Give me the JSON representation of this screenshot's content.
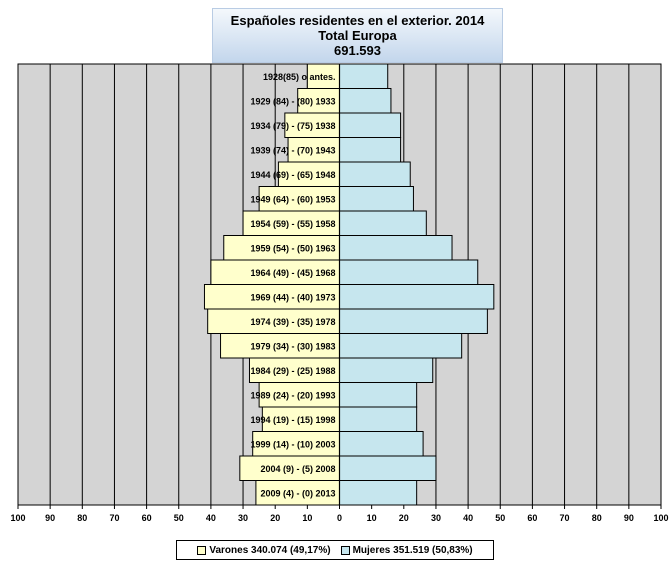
{
  "title": {
    "line1": "Españoles residentes en el exterior.  2014",
    "line2": "Total Europa",
    "line3": "691.593"
  },
  "legend": {
    "varones": "Varones 340.074 (49,17%)",
    "mujeres": "Mujeres 351.519 (50,83%)"
  },
  "colors": {
    "plot_background": "#d4d4d4",
    "varones": "#ffffcc",
    "mujeres": "#c6e6ee",
    "title_gradient_top": "#f4f8fc",
    "title_gradient_bottom": "#c3d6ec"
  },
  "chart_data": {
    "type": "bar",
    "orientation": "horizontal",
    "subtype": "population-pyramid",
    "categories": [
      "1928(85) o antes.",
      "1929 (84) - (80) 1933",
      "1934 (79) - (75) 1938",
      "1939 (74) - (70) 1943",
      "1944 (69) - (65) 1948",
      "1949 (64) - (60) 1953",
      "1954 (59) - (55) 1958",
      "1959 (54) - (50) 1963",
      "1964 (49) - (45) 1968",
      "1969 (44) - (40) 1973",
      "1974 (39) - (35) 1978",
      "1979 (34) - (30) 1983",
      "1984 (29) - (25) 1988",
      "1989 (24) - (20) 1993",
      "1994 (19) - (15) 1998",
      "1999 (14) - (10) 2003",
      "2004 (9) - (5) 2008",
      "2009 (4) - (0) 2013"
    ],
    "series": [
      {
        "name": "Varones 340.074 (49,17%)",
        "values": [
          10,
          13,
          17,
          16,
          19,
          25,
          30,
          36,
          40,
          42,
          41,
          37,
          28,
          25,
          24,
          27,
          31,
          26
        ]
      },
      {
        "name": "Mujeres 351.519 (50,83%)",
        "values": [
          15,
          16,
          19,
          19,
          22,
          23,
          27,
          35,
          43,
          48,
          46,
          38,
          29,
          24,
          24,
          26,
          30,
          24
        ]
      }
    ],
    "xlim": [
      -100,
      100
    ],
    "x_ticks": [
      "100",
      "90",
      "80",
      "70",
      "60",
      "50",
      "40",
      "30",
      "20",
      "10",
      "0",
      "10",
      "20",
      "30",
      "40",
      "50",
      "60",
      "70",
      "80",
      "90",
      "100"
    ],
    "grid": "vertical",
    "legend_position": "bottom"
  }
}
